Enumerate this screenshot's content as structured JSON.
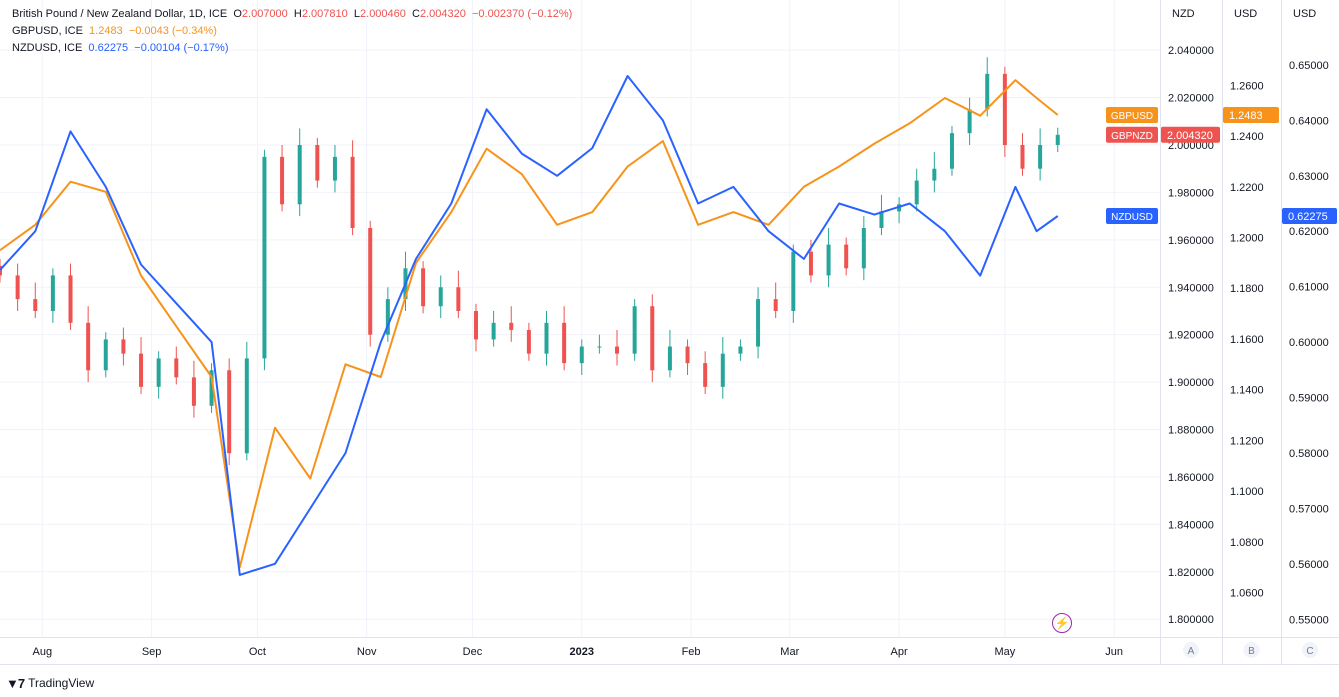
{
  "legend": {
    "main": {
      "name": "British Pound / New Zealand Dollar, 1D, ICE",
      "o_label": "O",
      "o": "2.007000",
      "h_label": "H",
      "h": "2.007810",
      "l_label": "L",
      "l": "2.000460",
      "c_label": "C",
      "c": "2.004320",
      "change": "−0.002370 (−0.12%)"
    },
    "gbpusd": {
      "name": "GBPUSD, ICE",
      "value": "1.2483",
      "change": "−0.0043 (−0.34%)"
    },
    "nzdusd": {
      "name": "NZDUSD, ICE",
      "value": "0.62275",
      "change": "−0.00104 (−0.17%)"
    }
  },
  "axes": {
    "scale_headers": [
      "NZD",
      "USD",
      "USD"
    ],
    "scale_buttons": [
      "A",
      "B",
      "C"
    ],
    "x_ticks": [
      "Aug",
      "Sep",
      "Oct",
      "Nov",
      "Dec",
      "2023",
      "Feb",
      "Mar",
      "Apr",
      "May",
      "Jun"
    ]
  },
  "badges": {
    "gbpusd": {
      "label": "GBPUSD",
      "value": "1.2483"
    },
    "gbpnzd": {
      "label": "GBPNZD",
      "value": "2.004320"
    },
    "nzdusd": {
      "label": "NZDUSD",
      "value": "0.62275"
    }
  },
  "colors": {
    "up": "#26a69a",
    "down": "#ef5350",
    "gbpusd": "#f7931a",
    "nzdusd": "#2962ff",
    "grid": "#f0f3fa",
    "axis_text": "#131722",
    "flash": "#9c27b0"
  },
  "footer": {
    "brand": "TradingView"
  },
  "chart_data": {
    "type": "line",
    "x_range": [
      "2022-07-20",
      "2023-06-14"
    ],
    "month_ticks": [
      {
        "label": "Aug",
        "date": "2022-08-01"
      },
      {
        "label": "Sep",
        "date": "2022-09-01"
      },
      {
        "label": "Oct",
        "date": "2022-10-01"
      },
      {
        "label": "Nov",
        "date": "2022-11-01"
      },
      {
        "label": "Dec",
        "date": "2022-12-01"
      },
      {
        "label": "2023",
        "date": "2023-01-01"
      },
      {
        "label": "Feb",
        "date": "2023-02-01"
      },
      {
        "label": "Mar",
        "date": "2023-03-01"
      },
      {
        "label": "Apr",
        "date": "2023-04-01"
      },
      {
        "label": "May",
        "date": "2023-05-01"
      },
      {
        "label": "Jun",
        "date": "2023-06-01"
      }
    ],
    "scales": [
      {
        "id": "A",
        "header": "NZD",
        "ylim": [
          1.7925,
          2.0485
        ],
        "ticks": [
          "2.040000",
          "2.020000",
          "2.000000",
          "1.980000",
          "1.960000",
          "1.940000",
          "1.920000",
          "1.900000",
          "1.880000",
          "1.860000",
          "1.840000",
          "1.820000",
          "1.800000"
        ]
      },
      {
        "id": "B",
        "header": "USD",
        "ylim": [
          1.0425,
          1.2818
        ],
        "ticks": [
          "1.2600",
          "1.2400",
          "1.2200",
          "1.2000",
          "1.1800",
          "1.1600",
          "1.1400",
          "1.1200",
          "1.1000",
          "1.0800",
          "1.0600"
        ]
      },
      {
        "id": "C",
        "header": "USD",
        "ylim": [
          0.5468,
          0.6563
        ],
        "ticks": [
          "0.65000",
          "0.64000",
          "0.63000",
          "0.62000",
          "0.61000",
          "0.60000",
          "0.59000",
          "0.58000",
          "0.57000",
          "0.56000",
          "0.55000"
        ]
      }
    ],
    "series": [
      {
        "name": "GBPNZD",
        "type": "candlestick",
        "scale": "A",
        "x": [
          "2022-07-20",
          "2022-07-25",
          "2022-07-30",
          "2022-08-04",
          "2022-08-09",
          "2022-08-14",
          "2022-08-19",
          "2022-08-24",
          "2022-08-29",
          "2022-09-03",
          "2022-09-08",
          "2022-09-13",
          "2022-09-18",
          "2022-09-23",
          "2022-09-28",
          "2022-10-03",
          "2022-10-08",
          "2022-10-13",
          "2022-10-18",
          "2022-10-23",
          "2022-10-28",
          "2022-11-02",
          "2022-11-07",
          "2022-11-12",
          "2022-11-17",
          "2022-11-22",
          "2022-11-27",
          "2022-12-02",
          "2022-12-07",
          "2022-12-12",
          "2022-12-17",
          "2022-12-22",
          "2022-12-27",
          "2023-01-01",
          "2023-01-06",
          "2023-01-11",
          "2023-01-16",
          "2023-01-21",
          "2023-01-26",
          "2023-01-31",
          "2023-02-05",
          "2023-02-10",
          "2023-02-15",
          "2023-02-20",
          "2023-02-25",
          "2023-03-02",
          "2023-03-07",
          "2023-03-12",
          "2023-03-17",
          "2023-03-22",
          "2023-03-27",
          "2023-04-01",
          "2023-04-06",
          "2023-04-11",
          "2023-04-16",
          "2023-04-21",
          "2023-04-26",
          "2023-05-01",
          "2023-05-06",
          "2023-05-11",
          "2023-05-16"
        ],
        "close": [
          1.945,
          1.935,
          1.93,
          1.945,
          1.925,
          1.905,
          1.918,
          1.912,
          1.898,
          1.91,
          1.902,
          1.89,
          1.905,
          1.87,
          1.91,
          1.995,
          1.975,
          2.0,
          1.985,
          1.995,
          1.965,
          1.92,
          1.935,
          1.948,
          1.932,
          1.94,
          1.93,
          1.918,
          1.925,
          1.922,
          1.912,
          1.925,
          1.908,
          1.915,
          1.915,
          1.912,
          1.932,
          1.905,
          1.915,
          1.908,
          1.898,
          1.912,
          1.915,
          1.935,
          1.93,
          1.955,
          1.945,
          1.958,
          1.948,
          1.965,
          1.972,
          1.975,
          1.985,
          1.99,
          2.005,
          2.015,
          2.03,
          2.0,
          1.99,
          2.0,
          2.0043
        ]
      },
      {
        "name": "GBPUSD",
        "scale": "B",
        "x": [
          "2022-07-20",
          "2022-07-30",
          "2022-08-09",
          "2022-08-19",
          "2022-08-29",
          "2022-09-08",
          "2022-09-18",
          "2022-09-26",
          "2022-10-06",
          "2022-10-16",
          "2022-10-26",
          "2022-11-05",
          "2022-11-15",
          "2022-11-25",
          "2022-12-05",
          "2022-12-15",
          "2022-12-25",
          "2023-01-04",
          "2023-01-14",
          "2023-01-24",
          "2023-02-03",
          "2023-02-13",
          "2023-02-23",
          "2023-03-05",
          "2023-03-15",
          "2023-03-25",
          "2023-04-04",
          "2023-04-14",
          "2023-04-24",
          "2023-05-04",
          "2023-05-10",
          "2023-05-16"
        ],
        "values": [
          1.195,
          1.205,
          1.222,
          1.218,
          1.185,
          1.165,
          1.145,
          1.07,
          1.125,
          1.105,
          1.15,
          1.145,
          1.19,
          1.21,
          1.235,
          1.225,
          1.205,
          1.21,
          1.228,
          1.238,
          1.205,
          1.21,
          1.205,
          1.22,
          1.228,
          1.237,
          1.245,
          1.255,
          1.248,
          1.262,
          1.255,
          1.2483
        ]
      },
      {
        "name": "NZDUSD",
        "scale": "C",
        "x": [
          "2022-07-20",
          "2022-07-30",
          "2022-08-09",
          "2022-08-19",
          "2022-08-29",
          "2022-09-08",
          "2022-09-18",
          "2022-09-26",
          "2022-10-06",
          "2022-10-16",
          "2022-10-26",
          "2022-11-05",
          "2022-11-15",
          "2022-11-25",
          "2022-12-05",
          "2022-12-15",
          "2022-12-25",
          "2023-01-04",
          "2023-01-14",
          "2023-01-24",
          "2023-02-03",
          "2023-02-13",
          "2023-02-23",
          "2023-03-05",
          "2023-03-15",
          "2023-03-25",
          "2023-04-04",
          "2023-04-14",
          "2023-04-24",
          "2023-05-04",
          "2023-05-10",
          "2023-05-16"
        ],
        "values": [
          0.613,
          0.62,
          0.638,
          0.628,
          0.614,
          0.607,
          0.6,
          0.558,
          0.56,
          0.57,
          0.58,
          0.6,
          0.615,
          0.625,
          0.642,
          0.634,
          0.63,
          0.635,
          0.648,
          0.64,
          0.625,
          0.628,
          0.62,
          0.615,
          0.625,
          0.623,
          0.625,
          0.62,
          0.612,
          0.628,
          0.62,
          0.62275
        ]
      }
    ]
  }
}
